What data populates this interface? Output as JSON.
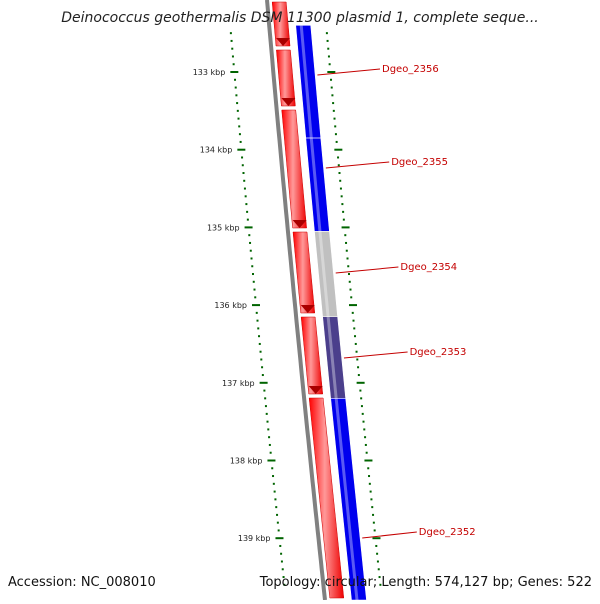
{
  "title": "Deinococcus geothermalis DSM 11300 plasmid 1, complete seque...",
  "footer": {
    "accession": "Accession: NC_008010",
    "summary": "Topology: circular; Length: 574,127 bp; Genes: 522"
  },
  "ticks": [
    {
      "label": "133 kbp",
      "kbp": 133
    },
    {
      "label": "134 kbp",
      "kbp": 134
    },
    {
      "label": "135 kbp",
      "kbp": 135
    },
    {
      "label": "136 kbp",
      "kbp": 136
    },
    {
      "label": "137 kbp",
      "kbp": 137
    },
    {
      "label": "138 kbp",
      "kbp": 138
    },
    {
      "label": "139 kbp",
      "kbp": 139
    }
  ],
  "genes": [
    {
      "label": "Dgeo_2356",
      "start_kbp": 132.4,
      "end_kbp": 133.85,
      "color": "#0000ee"
    },
    {
      "label": "Dgeo_2355",
      "start_kbp": 133.85,
      "end_kbp": 135.05,
      "color": "#0000ee"
    },
    {
      "label": "Dgeo_2354",
      "start_kbp": 135.05,
      "end_kbp": 136.15,
      "color": "#c0c0c0"
    },
    {
      "label": "Dgeo_2353",
      "start_kbp": 136.15,
      "end_kbp": 137.2,
      "color": "#4b3f8c"
    },
    {
      "label": "Dgeo_2352",
      "start_kbp": 137.2,
      "end_kbp": 139.8,
      "color": "#0000ee"
    }
  ],
  "colors": {
    "forward_strand": "#ff0000",
    "backbone": "#808080",
    "tick_marks": "#006400",
    "label_text": "#c40000"
  }
}
